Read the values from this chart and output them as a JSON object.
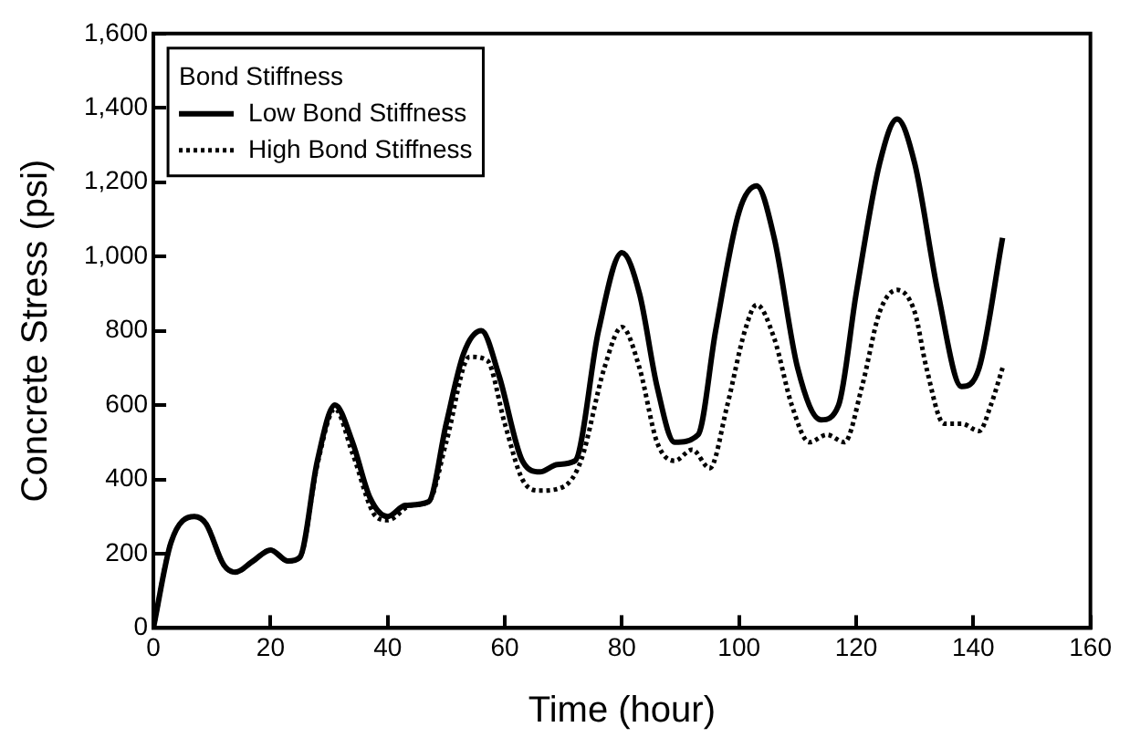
{
  "chart_data": {
    "type": "line",
    "xlabel": "Time (hour)",
    "ylabel": "Concrete Stress (psi)",
    "legend_title": "Bond Stiffness",
    "legend": "top left",
    "marker": "none",
    "xlim": [
      0,
      160
    ],
    "xticks": [
      0,
      20,
      40,
      60,
      80,
      100,
      120,
      140,
      160
    ],
    "ylim": [
      0,
      1600
    ],
    "yticks": [
      {
        "value": 0,
        "label": "0"
      },
      {
        "value": 200,
        "label": "200"
      },
      {
        "value": 400,
        "label": "400"
      },
      {
        "value": 600,
        "label": "600"
      },
      {
        "value": 800,
        "label": "800"
      },
      {
        "value": 1000,
        "label": "1,000"
      },
      {
        "value": 1200,
        "label": "1,200"
      },
      {
        "value": 1400,
        "label": "1,400"
      },
      {
        "value": 1600,
        "label": "1,600"
      }
    ],
    "series": [
      {
        "name": "Low Bond Stiffness",
        "color": "#000000",
        "line_style": "solid",
        "x": [
          0,
          3,
          7,
          9,
          12,
          14,
          17,
          20,
          23,
          25,
          28,
          31,
          34,
          37,
          40,
          43,
          47,
          50,
          53,
          56,
          59,
          63,
          66,
          69,
          72,
          76,
          80,
          83,
          86,
          89,
          93,
          96,
          100,
          103,
          106,
          110,
          114,
          117,
          120,
          124,
          127,
          130,
          134,
          138,
          141,
          145
        ],
        "values": [
          0,
          230,
          300,
          280,
          170,
          150,
          180,
          210,
          180,
          190,
          450,
          600,
          500,
          350,
          300,
          330,
          340,
          550,
          740,
          800,
          680,
          450,
          420,
          440,
          450,
          800,
          1010,
          900,
          650,
          500,
          520,
          800,
          1120,
          1190,
          1050,
          700,
          560,
          600,
          900,
          1250,
          1370,
          1250,
          900,
          650,
          700,
          1050
        ]
      },
      {
        "name": "High Bond Stiffness",
        "color": "#000000",
        "line_style": "dotted",
        "x": [
          0,
          3,
          7,
          9,
          12,
          14,
          17,
          20,
          23,
          25,
          28,
          31,
          34,
          38,
          40,
          44,
          47,
          50,
          54,
          57,
          60,
          63,
          66,
          70,
          73,
          77,
          80,
          83,
          86,
          89,
          92,
          95,
          98,
          101,
          103,
          106,
          109,
          112,
          115,
          118,
          121,
          124,
          127,
          130,
          132,
          135,
          138,
          141,
          143,
          145
        ],
        "values": [
          0,
          230,
          300,
          280,
          170,
          150,
          180,
          210,
          180,
          190,
          440,
          590,
          470,
          300,
          290,
          330,
          340,
          500,
          730,
          720,
          550,
          400,
          370,
          380,
          450,
          700,
          810,
          700,
          500,
          450,
          480,
          430,
          600,
          800,
          870,
          780,
          600,
          500,
          520,
          500,
          650,
          850,
          910,
          850,
          700,
          550,
          550,
          530,
          600,
          700
        ]
      }
    ]
  }
}
